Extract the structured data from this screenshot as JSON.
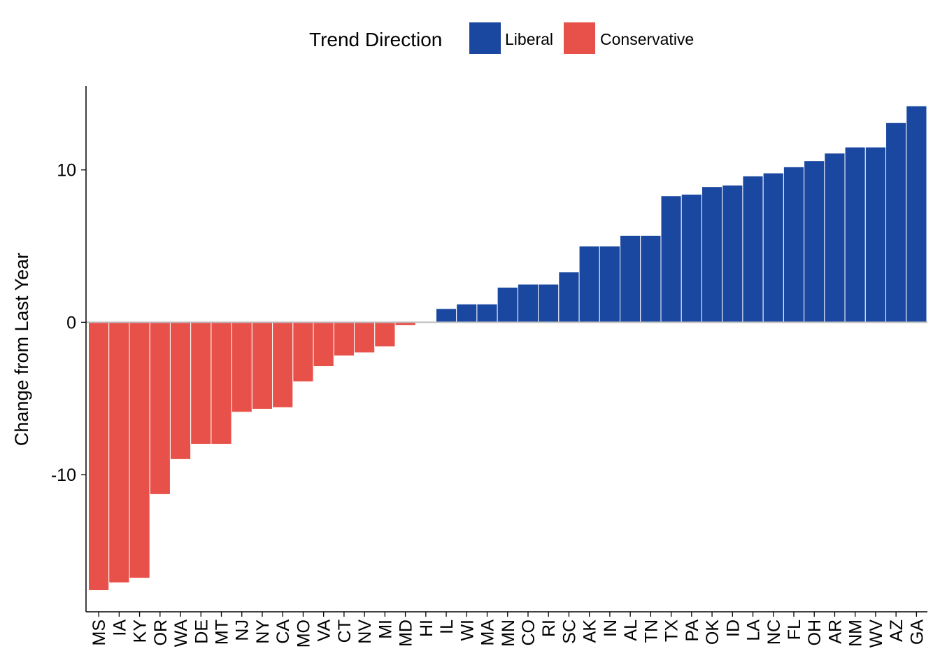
{
  "chart_data": {
    "type": "bar",
    "legend": {
      "title": "Trend Direction",
      "position": "top",
      "entries": [
        {
          "label": "Liberal",
          "color": "#1a47a0"
        },
        {
          "label": "Conservative",
          "color": "#e8514a"
        }
      ]
    },
    "xlabel": "",
    "ylabel": "Change from Last Year",
    "ylim": [
      -19,
      15.5
    ],
    "yticks": [
      {
        "value": 10,
        "label": "10"
      },
      {
        "value": 0,
        "label": "0"
      },
      {
        "value": -10,
        "label": "-10"
      }
    ],
    "grid": false,
    "zero_line_color": "#bdbdbd",
    "categories": [
      "MS",
      "IA",
      "KY",
      "OR",
      "WA",
      "DE",
      "MT",
      "NJ",
      "NY",
      "CA",
      "MO",
      "VA",
      "CT",
      "NV",
      "MI",
      "MD",
      "HI",
      "IL",
      "WI",
      "MA",
      "MN",
      "CO",
      "RI",
      "SC",
      "AK",
      "IN",
      "AL",
      "TN",
      "TX",
      "PA",
      "OK",
      "ID",
      "LA",
      "NC",
      "FL",
      "OH",
      "AR",
      "NM",
      "WV",
      "AZ",
      "GA"
    ],
    "values": [
      -17.6,
      -17.1,
      -16.8,
      -11.3,
      -9.0,
      -8.0,
      -8.0,
      -5.9,
      -5.7,
      -5.6,
      -3.9,
      -2.9,
      -2.2,
      -2.0,
      -1.6,
      -0.2,
      0.0,
      0.9,
      1.2,
      1.2,
      2.3,
      2.5,
      2.5,
      3.3,
      5.0,
      5.0,
      5.7,
      5.7,
      8.3,
      8.4,
      8.9,
      9.0,
      9.6,
      9.8,
      10.2,
      10.6,
      11.1,
      11.5,
      11.5,
      13.1,
      14.2
    ]
  }
}
